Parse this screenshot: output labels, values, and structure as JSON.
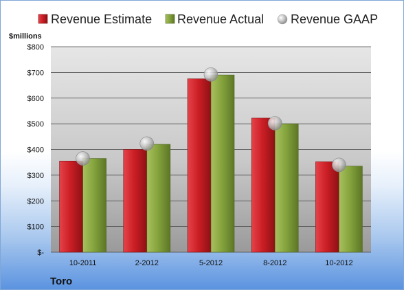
{
  "chart_data": {
    "type": "bar",
    "company": "Toro",
    "ylabel": "$millions",
    "categories": [
      "10-2011",
      "2-2012",
      "5-2012",
      "8-2012",
      "10-2012"
    ],
    "series": [
      {
        "name": "Revenue Estimate",
        "type": "bar",
        "color": "#cc1f25",
        "values": [
          355,
          400,
          675,
          522,
          352
        ]
      },
      {
        "name": "Revenue Actual",
        "type": "bar",
        "color": "#86a53e",
        "values": [
          365,
          420,
          690,
          500,
          335
        ]
      },
      {
        "name": "Revenue GAAP",
        "type": "marker",
        "color": "#b9b9b9",
        "values": [
          365,
          423,
          692,
          502,
          340
        ]
      }
    ],
    "ylim": [
      0,
      800
    ],
    "yticks": [
      0,
      100,
      200,
      300,
      400,
      500,
      600,
      700,
      800
    ],
    "ytick_labels": [
      "$-",
      "$100",
      "$200",
      "$300",
      "$400",
      "$500",
      "$600",
      "$700",
      "$800"
    ],
    "legend": "top",
    "grid": true
  }
}
